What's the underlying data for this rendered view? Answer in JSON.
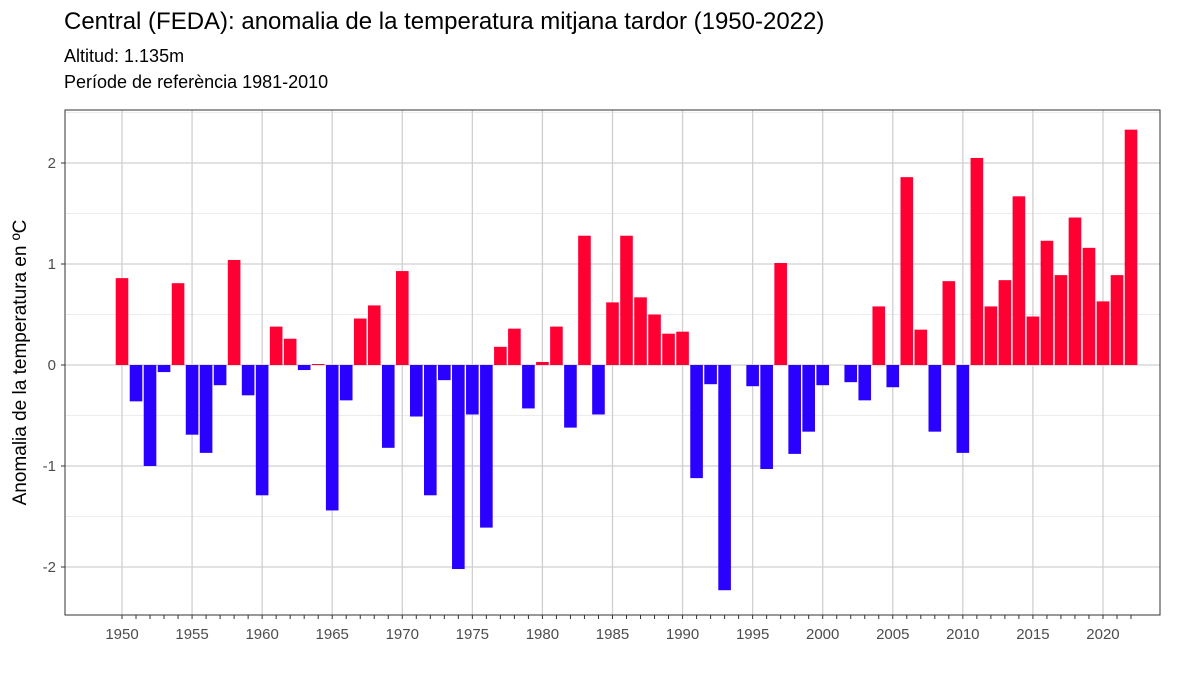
{
  "chart_data": {
    "type": "bar",
    "title": "Central (FEDA): anomalia de la temperatura mitjana tardor (1950-2022)",
    "subtitle": [
      "Altitud: 1.135m",
      "Període de referència 1981-2010"
    ],
    "xlabel": "",
    "ylabel": "Anomalia de la temperatura en ºC",
    "ylim": [
      -2.48,
      2.5
    ],
    "xlim": [
      1945.5,
      2026.5
    ],
    "grid": true,
    "colors": {
      "positive": "#ff0033",
      "negative": "#2a00ff"
    },
    "x_ticks": [
      1950,
      1955,
      1960,
      1965,
      1970,
      1975,
      1980,
      1985,
      1990,
      1995,
      2000,
      2005,
      2010,
      2015,
      2020
    ],
    "y_ticks": [
      -2,
      -1,
      0,
      1,
      2
    ],
    "x": [
      1950,
      1951,
      1952,
      1953,
      1954,
      1955,
      1956,
      1957,
      1958,
      1959,
      1960,
      1961,
      1962,
      1963,
      1964,
      1965,
      1966,
      1967,
      1968,
      1969,
      1970,
      1971,
      1972,
      1973,
      1974,
      1975,
      1976,
      1977,
      1978,
      1979,
      1980,
      1981,
      1982,
      1983,
      1984,
      1985,
      1986,
      1987,
      1988,
      1989,
      1990,
      1991,
      1992,
      1993,
      1994,
      1995,
      1996,
      1997,
      1998,
      1999,
      2000,
      2001,
      2002,
      2003,
      2004,
      2005,
      2006,
      2007,
      2008,
      2009,
      2010,
      2011,
      2012,
      2013,
      2014,
      2015,
      2016,
      2017,
      2018,
      2019,
      2020,
      2021,
      2022
    ],
    "values": [
      0.86,
      -0.36,
      -1.0,
      -0.07,
      0.81,
      -0.69,
      -0.87,
      -0.2,
      1.04,
      -0.3,
      -1.29,
      0.38,
      0.26,
      -0.05,
      0.01,
      -1.44,
      -0.35,
      0.46,
      0.59,
      -0.82,
      0.93,
      -0.51,
      -1.29,
      -0.15,
      -2.02,
      -0.49,
      -1.61,
      0.18,
      0.36,
      -0.43,
      0.03,
      0.38,
      -0.62,
      1.28,
      -0.49,
      0.62,
      1.28,
      0.67,
      0.5,
      0.31,
      0.33,
      -1.12,
      -0.19,
      -2.23,
      0.0,
      -0.21,
      -1.03,
      1.01,
      -0.88,
      -0.66,
      -0.2,
      0.0,
      -0.17,
      -0.35,
      0.58,
      -0.22,
      1.86,
      0.35,
      -0.66,
      0.83,
      -0.87,
      2.05,
      0.58,
      0.84,
      1.67,
      0.48,
      1.23,
      0.89,
      1.46,
      1.16,
      0.63,
      0.89,
      2.33
    ]
  }
}
